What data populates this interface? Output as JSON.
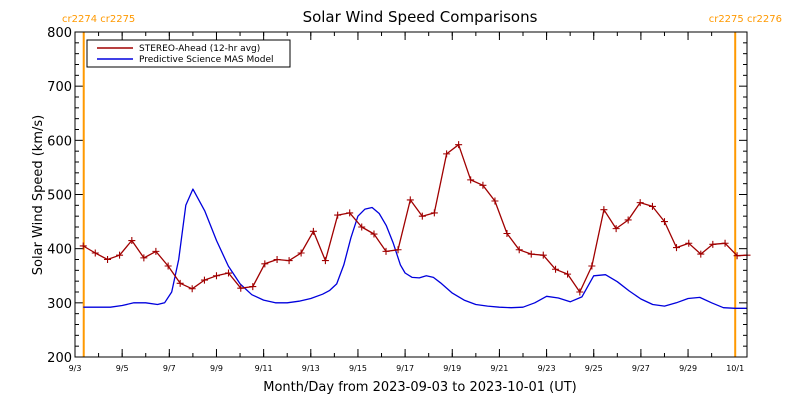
{
  "colors": {
    "stereo": "#a00000",
    "model": "#0000dd",
    "marker_lines": "#ff9900",
    "axis": "#000000",
    "background": "#ffffff"
  },
  "chart_data": {
    "type": "line",
    "title": "Solar Wind Speed Comparisons",
    "xlabel": "Month/Day from 2023-09-03 to 2023-10-01 (UT)",
    "ylabel": "Solar Wind Speed (km/s)",
    "x_start_date": "2023-09-03",
    "xlim_days": [
      0,
      28.5
    ],
    "ylim": [
      200,
      800
    ],
    "y_ticks": [
      200,
      300,
      400,
      500,
      600,
      700,
      800
    ],
    "x_ticks": [
      {
        "day": 0,
        "label": "9/3"
      },
      {
        "day": 2,
        "label": "9/5"
      },
      {
        "day": 4,
        "label": "9/7"
      },
      {
        "day": 6,
        "label": "9/9"
      },
      {
        "day": 8,
        "label": "9/11"
      },
      {
        "day": 10,
        "label": "9/13"
      },
      {
        "day": 12,
        "label": "9/15"
      },
      {
        "day": 14,
        "label": "9/17"
      },
      {
        "day": 16,
        "label": "9/19"
      },
      {
        "day": 18,
        "label": "9/21"
      },
      {
        "day": 20,
        "label": "9/23"
      },
      {
        "day": 22,
        "label": "9/25"
      },
      {
        "day": 24,
        "label": "9/27"
      },
      {
        "day": 26,
        "label": "9/29"
      },
      {
        "day": 28,
        "label": "10/1"
      }
    ],
    "minor_ticks_per_day": 1,
    "grid": false,
    "legend_position": "top-left",
    "carrington_markers": [
      {
        "day": 0.37,
        "left_label": "cr2274",
        "right_label": "cr2275",
        "corner": "top-left"
      },
      {
        "day": 28.0,
        "left_label": "cr2275",
        "right_label": "cr2276",
        "corner": "top-right"
      }
    ],
    "series": [
      {
        "name": "STEREO-Ahead (12-hr avg)",
        "color_key": "stereo",
        "marker": "plus",
        "x": [
          0.35,
          0.86,
          1.38,
          1.89,
          2.41,
          2.92,
          3.43,
          3.95,
          4.46,
          4.97,
          5.49,
          6.0,
          6.51,
          7.03,
          7.54,
          8.05,
          8.57,
          9.08,
          9.59,
          10.11,
          10.62,
          11.14,
          11.65,
          12.16,
          12.68,
          13.19,
          13.7,
          14.22,
          14.73,
          15.24,
          15.76,
          16.27,
          16.78,
          17.3,
          17.81,
          18.32,
          18.84,
          19.35,
          19.86,
          20.38,
          20.89,
          21.41,
          21.92,
          22.43,
          22.95,
          23.46,
          23.97,
          24.49,
          25.0,
          25.51,
          26.03,
          26.54,
          27.05,
          27.57,
          28.08,
          28.5
        ],
        "values": [
          405,
          392,
          380,
          388,
          415,
          383,
          395,
          368,
          336,
          326,
          342,
          350,
          355,
          327,
          330,
          372,
          380,
          378,
          392,
          432,
          378,
          462,
          466,
          440,
          427,
          395,
          398,
          490,
          460,
          466,
          575,
          592,
          527,
          517,
          488,
          428,
          398,
          390,
          388,
          362,
          353,
          320,
          368,
          472,
          437,
          453,
          485,
          478,
          450,
          402,
          410,
          390,
          408,
          410,
          387,
          388
        ]
      },
      {
        "name": "Predictive Science MAS Model",
        "color_key": "model",
        "marker": "none",
        "x": [
          0.35,
          1.0,
          1.5,
          2.0,
          2.5,
          3.0,
          3.5,
          3.8,
          4.1,
          4.4,
          4.7,
          5.0,
          5.5,
          6.0,
          6.5,
          7.0,
          7.5,
          8.0,
          8.5,
          9.0,
          9.5,
          10.0,
          10.5,
          10.8,
          11.1,
          11.4,
          11.7,
          12.0,
          12.3,
          12.6,
          12.9,
          13.2,
          13.5,
          13.8,
          14.0,
          14.3,
          14.6,
          14.9,
          15.2,
          15.5,
          16.0,
          16.5,
          17.0,
          17.5,
          18.0,
          18.5,
          19.0,
          19.5,
          20.0,
          20.5,
          21.0,
          21.5,
          22.0,
          22.5,
          23.0,
          23.5,
          24.0,
          24.5,
          25.0,
          25.5,
          26.0,
          26.5,
          27.0,
          27.5,
          28.0,
          28.5
        ],
        "values": [
          292,
          292,
          292,
          295,
          300,
          300,
          297,
          300,
          320,
          380,
          480,
          510,
          470,
          415,
          368,
          335,
          315,
          305,
          300,
          300,
          303,
          308,
          316,
          323,
          335,
          370,
          420,
          460,
          473,
          476,
          465,
          443,
          410,
          370,
          355,
          347,
          346,
          350,
          347,
          337,
          318,
          305,
          297,
          294,
          292,
          291,
          292,
          300,
          312,
          309,
          302,
          311,
          350,
          352,
          339,
          322,
          307,
          297,
          294,
          300,
          308,
          310,
          300,
          291,
          290,
          290
        ]
      }
    ]
  }
}
